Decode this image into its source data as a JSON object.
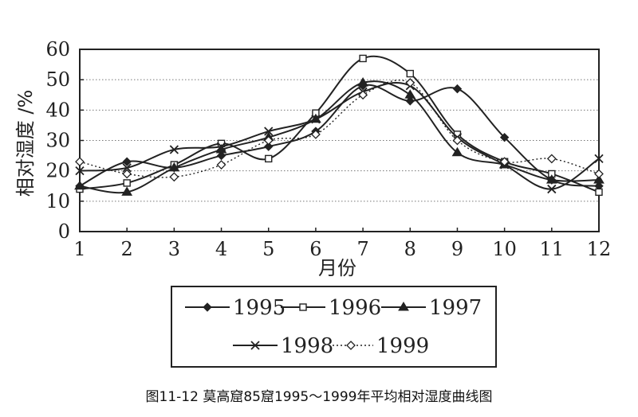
{
  "caption": "图11-12   莫高窟85窟1995～1999年平均相对湿度曲线图",
  "chart_data": {
    "type": "line",
    "title": "",
    "xlabel": "月份",
    "ylabel": "相对湿度 /%",
    "x": [
      1,
      2,
      3,
      4,
      5,
      6,
      7,
      8,
      9,
      10,
      11,
      12
    ],
    "xlim": [
      1,
      12
    ],
    "ylim": [
      0,
      60
    ],
    "yticks": [
      0,
      10,
      20,
      30,
      40,
      50,
      60
    ],
    "grid": "horizontal-dotted",
    "legend_position": "bottom",
    "series": [
      {
        "name": "1995",
        "marker": "diamond-filled",
        "dash": "solid",
        "values": [
          15,
          23,
          21,
          25,
          28,
          33,
          48,
          43,
          47,
          31,
          17,
          15
        ]
      },
      {
        "name": "1996",
        "marker": "square-open",
        "dash": "solid",
        "values": [
          14,
          16,
          22,
          29,
          24,
          39,
          57,
          52,
          32,
          23,
          19,
          13
        ]
      },
      {
        "name": "1997",
        "marker": "triangle-filled",
        "dash": "solid",
        "values": [
          15,
          13,
          21,
          27,
          31,
          37,
          49,
          45,
          26,
          22,
          17,
          17
        ]
      },
      {
        "name": "1998",
        "marker": "x",
        "dash": "solid",
        "values": [
          20,
          21,
          27,
          28,
          33,
          37,
          46,
          48,
          31,
          22,
          14,
          24
        ]
      },
      {
        "name": "1999",
        "marker": "diamond-open",
        "dash": "dotted",
        "values": [
          23,
          19,
          18,
          22,
          30,
          32,
          45,
          49,
          30,
          23,
          24,
          19
        ]
      }
    ]
  }
}
